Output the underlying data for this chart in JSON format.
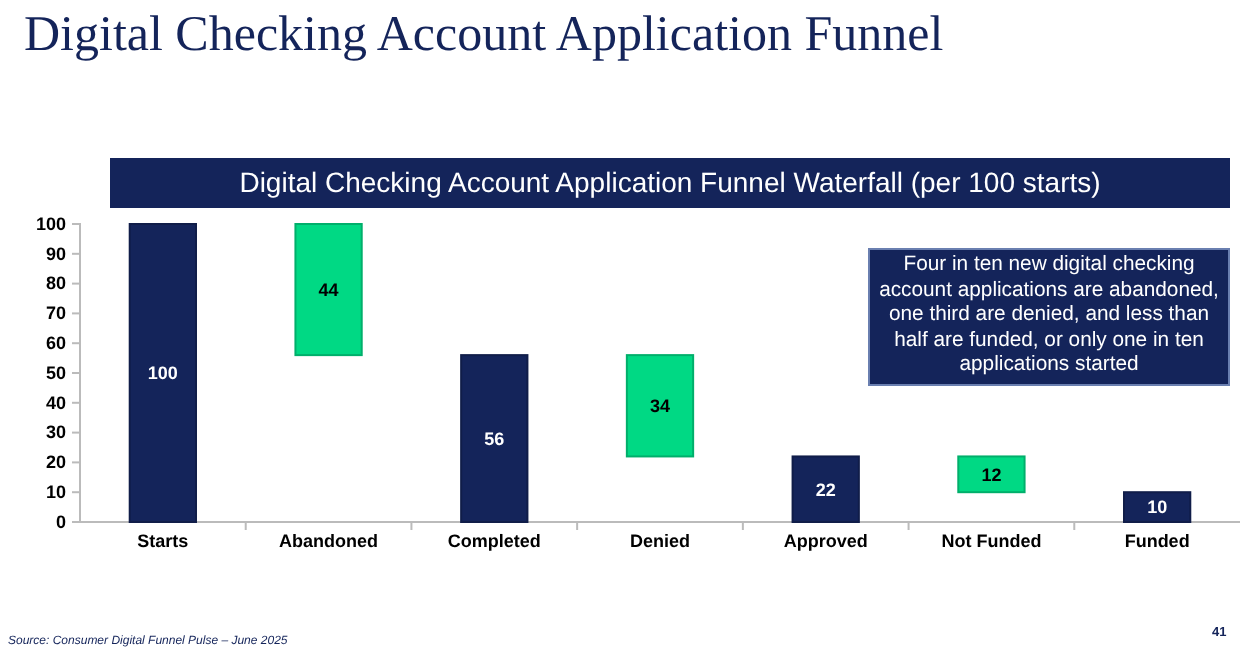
{
  "chart_data": {
    "type": "bar",
    "title": "Digital Checking Account Application Funnel",
    "subtitle": "Digital Checking Account Application Funnel Waterfall (per 100 starts)",
    "categories": [
      "Starts",
      "Abandoned",
      "Completed",
      "Denied",
      "Approved",
      "Not Funded",
      "Funded"
    ],
    "values": [
      100,
      44,
      56,
      34,
      22,
      12,
      10
    ],
    "base": [
      0,
      56,
      0,
      22,
      0,
      10,
      0
    ],
    "colors": [
      "#14245a",
      "#00d984",
      "#14245a",
      "#00d984",
      "#14245a",
      "#00d984",
      "#14245a"
    ],
    "data_labels": true,
    "ylim": [
      0,
      100
    ],
    "yticks": [
      0,
      10,
      20,
      30,
      40,
      50,
      60,
      70,
      80,
      90,
      100
    ],
    "grid": false,
    "annotations": [
      "Four in ten new digital checking account applications are abandoned, one third are denied, and less than half are funded, or only one in ten applications started",
      "Source: Consumer Digital Funnel Pulse – June 2025",
      "41"
    ]
  }
}
